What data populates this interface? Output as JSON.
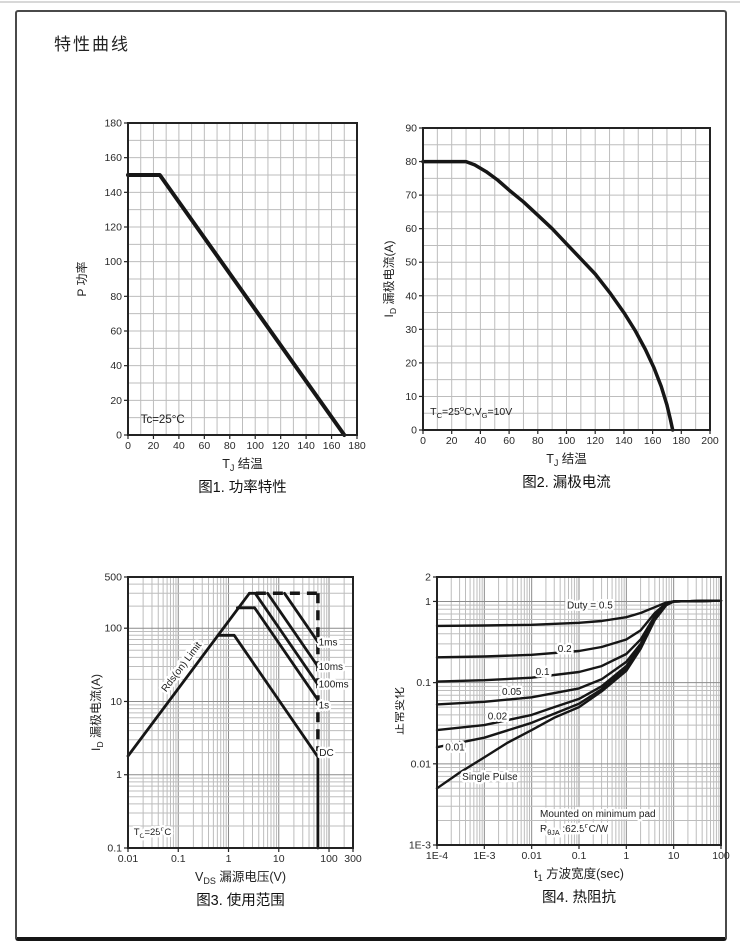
{
  "page": {
    "title": "特性曲线"
  },
  "chart_data": [
    {
      "id": "fig1",
      "type": "line",
      "caption": "图1. 功率特性",
      "xlabel": "T_{J} 结温",
      "ylabel": "P 功率",
      "x_axis": {
        "scale": "linear",
        "min": 0,
        "max": 180,
        "tick_step": 20,
        "grid_step": 10
      },
      "y_axis": {
        "scale": "linear",
        "min": 0,
        "max": 180,
        "tick_step": 20,
        "grid_step": 10
      },
      "series": [
        {
          "name": "power-derating",
          "width": 4,
          "points": [
            [
              0,
              150
            ],
            [
              25,
              150
            ],
            [
              170,
              0
            ]
          ]
        }
      ],
      "labels": [
        {
          "text": "Tc=25°C",
          "x": 10,
          "y": 7,
          "anchor": "start",
          "size": 11.5
        }
      ]
    },
    {
      "id": "fig2",
      "type": "line",
      "caption": "图2. 漏极电流",
      "xlabel": "T_{J} 结温",
      "ylabel": "I_{D} 漏极电流(A)",
      "x_axis": {
        "scale": "linear",
        "min": 0,
        "max": 200,
        "tick_step": 20,
        "grid_step": 10
      },
      "y_axis": {
        "scale": "linear",
        "min": 0,
        "max": 90,
        "tick_step": 10,
        "grid_step": 5
      },
      "series": [
        {
          "name": "drain-current-derating",
          "width": 3.5,
          "points": [
            [
              0,
              80
            ],
            [
              30,
              80
            ],
            [
              36,
              79
            ],
            [
              44,
              77
            ],
            [
              52,
              74.5
            ],
            [
              60,
              71.5
            ],
            [
              70,
              68
            ],
            [
              80,
              64
            ],
            [
              90,
              60
            ],
            [
              100,
              55.5
            ],
            [
              110,
              51
            ],
            [
              120,
              46.5
            ],
            [
              130,
              41
            ],
            [
              140,
              35
            ],
            [
              148,
              29.5
            ],
            [
              155,
              24
            ],
            [
              161,
              18.5
            ],
            [
              166,
              13
            ],
            [
              170,
              7.5
            ],
            [
              172.5,
              3
            ],
            [
              174,
              0
            ]
          ]
        }
      ],
      "labels": [
        {
          "text": "T_{C}=25^{o}C,V_{G}=10V",
          "x": 5,
          "y": 4.5,
          "anchor": "start",
          "size": 10.5
        }
      ]
    },
    {
      "id": "fig3",
      "type": "line",
      "caption": "图3. 使用范围",
      "xlabel": "V_{DS} 漏源电压(V)",
      "ylabel": "I_{D} 漏极电流(A)",
      "x_axis": {
        "scale": "log",
        "min": 0.01,
        "max": 300,
        "ticks": [
          [
            0.01,
            "0.01"
          ],
          [
            0.1,
            "0.1"
          ],
          [
            1,
            "1"
          ],
          [
            10,
            "10"
          ],
          [
            100,
            "100"
          ],
          [
            300,
            "300"
          ]
        ]
      },
      "y_axis": {
        "scale": "log",
        "min": 0.1,
        "max": 500,
        "ticks": [
          [
            0.1,
            "0.1"
          ],
          [
            1,
            "1"
          ],
          [
            10,
            "10"
          ],
          [
            100,
            "100"
          ],
          [
            500,
            "500"
          ]
        ]
      },
      "series": [
        {
          "name": "rds-on-limit",
          "width": 2.8,
          "points": [
            [
              0.01,
              1.8
            ],
            [
              2.6,
              300
            ]
          ]
        },
        {
          "name": "limit-100ms",
          "width": 2.8,
          "points": [
            [
              2.6,
              300
            ],
            [
              3.4,
              300
            ],
            [
              60,
              17
            ]
          ]
        },
        {
          "name": "limit-10ms",
          "width": 2.8,
          "points": [
            [
              6,
              300
            ],
            [
              60,
              30
            ]
          ]
        },
        {
          "name": "limit-1ms",
          "width": 2.8,
          "points": [
            [
              13,
              300
            ],
            [
              60,
              65
            ]
          ]
        },
        {
          "name": "limit-1s",
          "width": 2.8,
          "points": [
            [
              1.5,
              190
            ],
            [
              3.3,
              190
            ],
            [
              60,
              10.5
            ]
          ]
        },
        {
          "name": "limit-dc",
          "width": 2.8,
          "points": [
            [
              0.62,
              80
            ],
            [
              1.3,
              80
            ],
            [
              60,
              1.75
            ],
            [
              60,
              0.1
            ]
          ]
        },
        {
          "name": "pulse-boundary-top",
          "width": 3.5,
          "dash": "10 7",
          "points": [
            [
              3.5,
              300
            ],
            [
              60,
              300
            ]
          ]
        },
        {
          "name": "voltage-boundary",
          "width": 3.5,
          "dash": "10 7",
          "points": [
            [
              60,
              300
            ],
            [
              60,
              2.1
            ]
          ]
        }
      ],
      "labels": [
        {
          "text": "Rds(on) Limit",
          "x": 0.13,
          "y": 28,
          "rotate": -53,
          "size": 10,
          "halo": true
        },
        {
          "text": "1ms",
          "x": 62,
          "y": 58,
          "anchor": "start",
          "size": 10,
          "halo": true
        },
        {
          "text": "10ms",
          "x": 62,
          "y": 27,
          "anchor": "start",
          "size": 10,
          "halo": true
        },
        {
          "text": "100ms",
          "x": 62,
          "y": 15.5,
          "anchor": "start",
          "size": 10,
          "halo": true
        },
        {
          "text": "1s",
          "x": 62,
          "y": 8,
          "anchor": "start",
          "size": 10,
          "halo": true
        },
        {
          "text": "DC",
          "x": 64,
          "y": 1.8,
          "anchor": "start",
          "size": 10,
          "halo": true
        },
        {
          "text": "T_{C}=25^{o}C",
          "x": 0.013,
          "y": 0.15,
          "anchor": "start",
          "size": 9.5,
          "halo": true
        }
      ]
    },
    {
      "id": "fig4",
      "type": "line",
      "caption": "图4. 热阻抗",
      "xlabel": "t_{1} 方波宽度(sec)",
      "ylabel": "正常变化",
      "x_axis": {
        "scale": "log",
        "min": 0.0001,
        "max": 100,
        "ticks": [
          [
            0.0001,
            "1E-4"
          ],
          [
            0.001,
            "1E-3"
          ],
          [
            0.01,
            "0.01"
          ],
          [
            0.1,
            "0.1"
          ],
          [
            1,
            "1"
          ],
          [
            10,
            "10"
          ],
          [
            100,
            "100"
          ]
        ]
      },
      "y_axis": {
        "scale": "log",
        "min": 0.001,
        "max": 2,
        "ticks": [
          [
            0.001,
            "1E-3"
          ],
          [
            0.01,
            "0.01"
          ],
          [
            0.1,
            "0.1"
          ],
          [
            1,
            "1"
          ],
          [
            2,
            "2"
          ]
        ]
      },
      "series": [
        {
          "name": "duty-0.5",
          "duty": "0.5",
          "width": 2.4,
          "points": [
            [
              0.0001,
              0.5
            ],
            [
              0.001,
              0.505
            ],
            [
              0.01,
              0.515
            ],
            [
              0.1,
              0.545
            ],
            [
              0.3,
              0.575
            ],
            [
              1,
              0.64
            ],
            [
              2,
              0.72
            ],
            [
              4,
              0.85
            ],
            [
              7,
              0.97
            ],
            [
              10,
              1.0
            ],
            [
              100,
              1.02
            ]
          ]
        },
        {
          "name": "duty-0.2",
          "duty": "0.2",
          "width": 2.4,
          "points": [
            [
              0.0001,
              0.205
            ],
            [
              0.001,
              0.21
            ],
            [
              0.01,
              0.22
            ],
            [
              0.1,
              0.245
            ],
            [
              0.3,
              0.275
            ],
            [
              1,
              0.34
            ],
            [
              2,
              0.44
            ],
            [
              4,
              0.72
            ],
            [
              7,
              0.95
            ],
            [
              10,
              1.0
            ],
            [
              100,
              1.02
            ]
          ]
        },
        {
          "name": "duty-0.1",
          "duty": "0.1",
          "width": 2.4,
          "points": [
            [
              0.0001,
              0.103
            ],
            [
              0.001,
              0.107
            ],
            [
              0.01,
              0.115
            ],
            [
              0.1,
              0.135
            ],
            [
              0.3,
              0.16
            ],
            [
              1,
              0.225
            ],
            [
              2,
              0.34
            ],
            [
              4,
              0.66
            ],
            [
              7,
              0.93
            ],
            [
              10,
              1.0
            ],
            [
              100,
              1.02
            ]
          ]
        },
        {
          "name": "duty-0.05",
          "duty": "0.05",
          "width": 2.4,
          "points": [
            [
              0.0001,
              0.054
            ],
            [
              0.001,
              0.058
            ],
            [
              0.01,
              0.066
            ],
            [
              0.1,
              0.085
            ],
            [
              0.3,
              0.11
            ],
            [
              1,
              0.18
            ],
            [
              2,
              0.3
            ],
            [
              4,
              0.63
            ],
            [
              7,
              0.92
            ],
            [
              10,
              1.0
            ],
            [
              100,
              1.02
            ]
          ]
        },
        {
          "name": "duty-0.02",
          "duty": "0.02",
          "width": 2.4,
          "points": [
            [
              0.0001,
              0.026
            ],
            [
              0.001,
              0.03
            ],
            [
              0.01,
              0.04
            ],
            [
              0.03,
              0.05
            ],
            [
              0.1,
              0.063
            ],
            [
              0.3,
              0.09
            ],
            [
              1,
              0.16
            ],
            [
              2,
              0.28
            ],
            [
              4,
              0.61
            ],
            [
              7,
              0.91
            ],
            [
              10,
              1.0
            ],
            [
              100,
              1.02
            ]
          ]
        },
        {
          "name": "duty-0.01",
          "duty": "0.01",
          "width": 2.4,
          "points": [
            [
              0.0001,
              0.016
            ],
            [
              0.001,
              0.021
            ],
            [
              0.01,
              0.032
            ],
            [
              0.1,
              0.055
            ],
            [
              0.3,
              0.083
            ],
            [
              1,
              0.15
            ],
            [
              2,
              0.27
            ],
            [
              4,
              0.6
            ],
            [
              7,
              0.91
            ],
            [
              10,
              1.0
            ],
            [
              100,
              1.02
            ]
          ]
        },
        {
          "name": "single-pulse",
          "duty": "Single Pulse",
          "width": 2.4,
          "points": [
            [
              0.0001,
              0.005
            ],
            [
              0.0003,
              0.0078
            ],
            [
              0.001,
              0.012
            ],
            [
              0.003,
              0.018
            ],
            [
              0.01,
              0.026
            ],
            [
              0.03,
              0.037
            ],
            [
              0.1,
              0.05
            ],
            [
              0.3,
              0.078
            ],
            [
              1,
              0.14
            ],
            [
              2,
              0.26
            ],
            [
              4,
              0.59
            ],
            [
              7,
              0.9
            ],
            [
              10,
              1.0
            ],
            [
              100,
              1.02
            ]
          ]
        }
      ],
      "labels": [
        {
          "text": "Duty =  0.5",
          "x": 0.17,
          "y": 0.82,
          "size": 10,
          "halo": true
        },
        {
          "text": "0.2",
          "x": 0.05,
          "y": 0.24,
          "size": 10,
          "halo": true
        },
        {
          "text": "0.1",
          "x": 0.017,
          "y": 0.125,
          "size": 10,
          "halo": true
        },
        {
          "text": "0.05",
          "x": 0.0038,
          "y": 0.07,
          "size": 10,
          "halo": true
        },
        {
          "text": "0.02",
          "x": 0.0019,
          "y": 0.035,
          "size": 10,
          "halo": true
        },
        {
          "text": "0.01",
          "x": 0.00024,
          "y": 0.0145,
          "size": 10,
          "halo": true
        },
        {
          "text": "Single Pulse",
          "x": 0.00034,
          "y": 0.0063,
          "anchor": "start",
          "size": 10,
          "halo": true
        },
        {
          "text": "Mounted on minimum pad",
          "x": 0.015,
          "y": 0.0022,
          "anchor": "start",
          "size": 10,
          "halo": true
        },
        {
          "text": "R_{θJA} :62.5^{o}C/W",
          "x": 0.015,
          "y": 0.00145,
          "anchor": "start",
          "size": 10,
          "halo": true
        }
      ]
    }
  ]
}
